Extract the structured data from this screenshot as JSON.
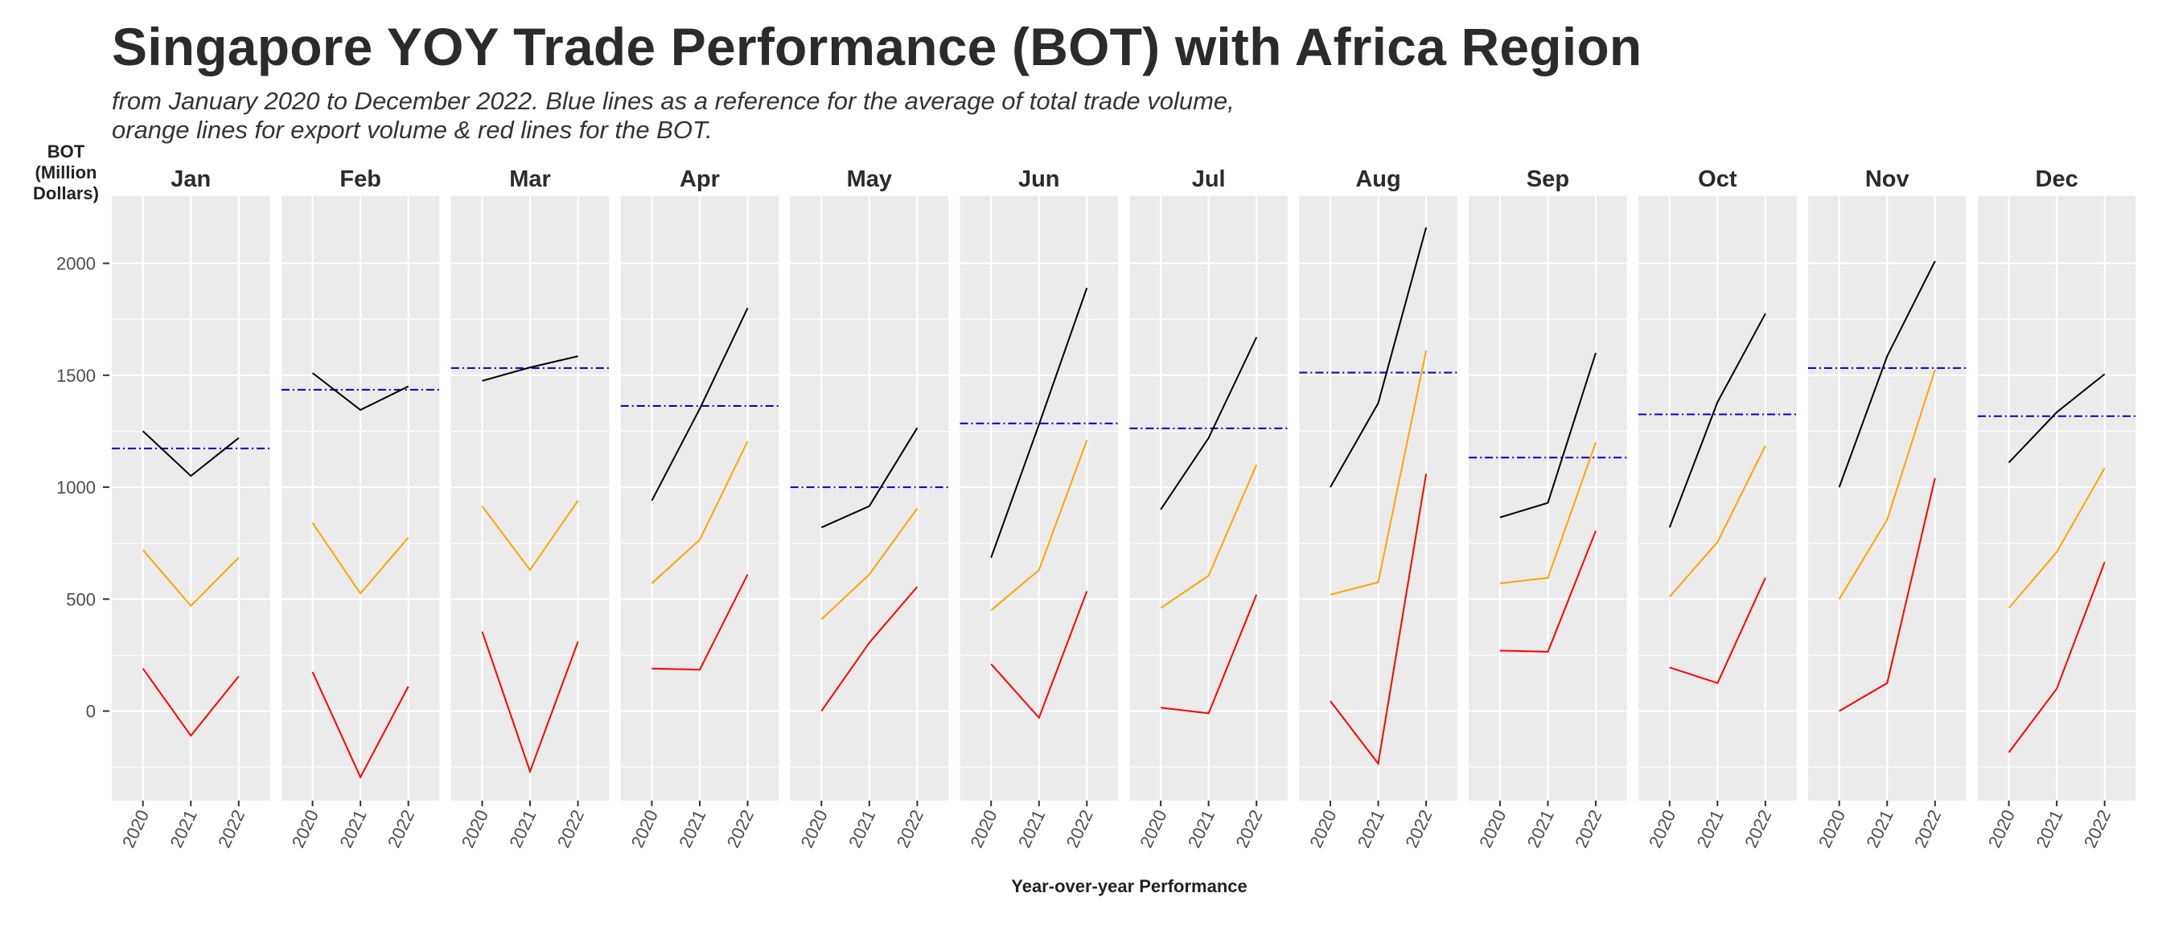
{
  "title": "Singapore YOY Trade Performance (BOT) with Africa Region",
  "subtitle_line1": "from January 2020 to December 2022. Blue lines as a reference for the average of total trade volume,",
  "subtitle_line2": "orange lines for export volume & red lines for the BOT.",
  "chart_data": {
    "type": "line",
    "facets": [
      "Jan",
      "Feb",
      "Mar",
      "Apr",
      "May",
      "Jun",
      "Jul",
      "Aug",
      "Sep",
      "Oct",
      "Nov",
      "Dec"
    ],
    "categories": [
      "2020",
      "2021",
      "2022"
    ],
    "ylabel_lines": [
      "BOT",
      "(Million",
      "Dollars)"
    ],
    "xlabel": "Year-over-year Performance",
    "y_ticks": [
      0,
      500,
      1000,
      1500,
      2000
    ],
    "ylim": [
      -400,
      2300
    ],
    "grid": true,
    "colors": {
      "total": "#000000",
      "export": "#FFA500",
      "bot": "#FF0000",
      "average": "#0000CD",
      "panel_bg": "#EBEBEB",
      "grid": "#FFFFFF",
      "text": "#333333"
    },
    "total": [
      [
        1250,
        1050,
        1220
      ],
      [
        1510,
        1345,
        1450
      ],
      [
        1475,
        1535,
        1585
      ],
      [
        940,
        1350,
        1800
      ],
      [
        820,
        915,
        1265
      ],
      [
        685,
        1280,
        1890
      ],
      [
        900,
        1220,
        1670
      ],
      [
        1000,
        1375,
        2160
      ],
      [
        865,
        930,
        1600
      ],
      [
        820,
        1380,
        1775
      ],
      [
        1000,
        1585,
        2010
      ],
      [
        1110,
        1335,
        1505
      ]
    ],
    "export": [
      [
        720,
        470,
        685
      ],
      [
        840,
        525,
        775
      ],
      [
        915,
        630,
        940
      ],
      [
        570,
        765,
        1205
      ],
      [
        410,
        610,
        905
      ],
      [
        450,
        630,
        1210
      ],
      [
        460,
        605,
        1100
      ],
      [
        520,
        575,
        1610
      ],
      [
        570,
        595,
        1200
      ],
      [
        510,
        755,
        1185
      ],
      [
        500,
        855,
        1525
      ],
      [
        460,
        710,
        1085
      ]
    ],
    "bot": [
      [
        190,
        -110,
        155
      ],
      [
        175,
        -295,
        110
      ],
      [
        355,
        -270,
        310
      ],
      [
        190,
        185,
        610
      ],
      [
        0,
        305,
        555
      ],
      [
        210,
        -30,
        535
      ],
      [
        15,
        -10,
        520
      ],
      [
        45,
        -235,
        1060
      ],
      [
        270,
        265,
        805
      ],
      [
        195,
        125,
        595
      ],
      [
        0,
        125,
        1040
      ],
      [
        -185,
        100,
        665
      ]
    ],
    "average": [
      1173,
      1435,
      1532,
      1363,
      1000,
      1285,
      1263,
      1512,
      1132,
      1325,
      1532,
      1317
    ]
  }
}
